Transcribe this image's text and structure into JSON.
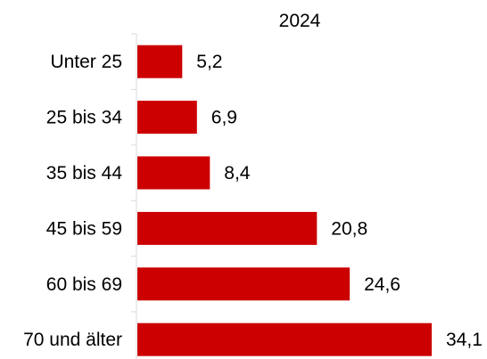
{
  "chart_data": {
    "type": "bar",
    "orientation": "horizontal",
    "title": "2024",
    "categories": [
      "Unter 25",
      "25 bis 34",
      "35 bis 44",
      "45 bis 59",
      "60 bis 69",
      "70 und älter"
    ],
    "values": [
      5.2,
      6.9,
      8.4,
      20.8,
      24.6,
      34.1
    ],
    "value_labels": [
      "5,2",
      "6,9",
      "8,4",
      "20,8",
      "24,6",
      "34,1"
    ],
    "xlim": [
      0,
      34.1
    ],
    "grid": false,
    "legend": "none",
    "colors": {
      "bar": "#CC0000",
      "axis": "#D9D9D9",
      "text": "#000000"
    }
  }
}
